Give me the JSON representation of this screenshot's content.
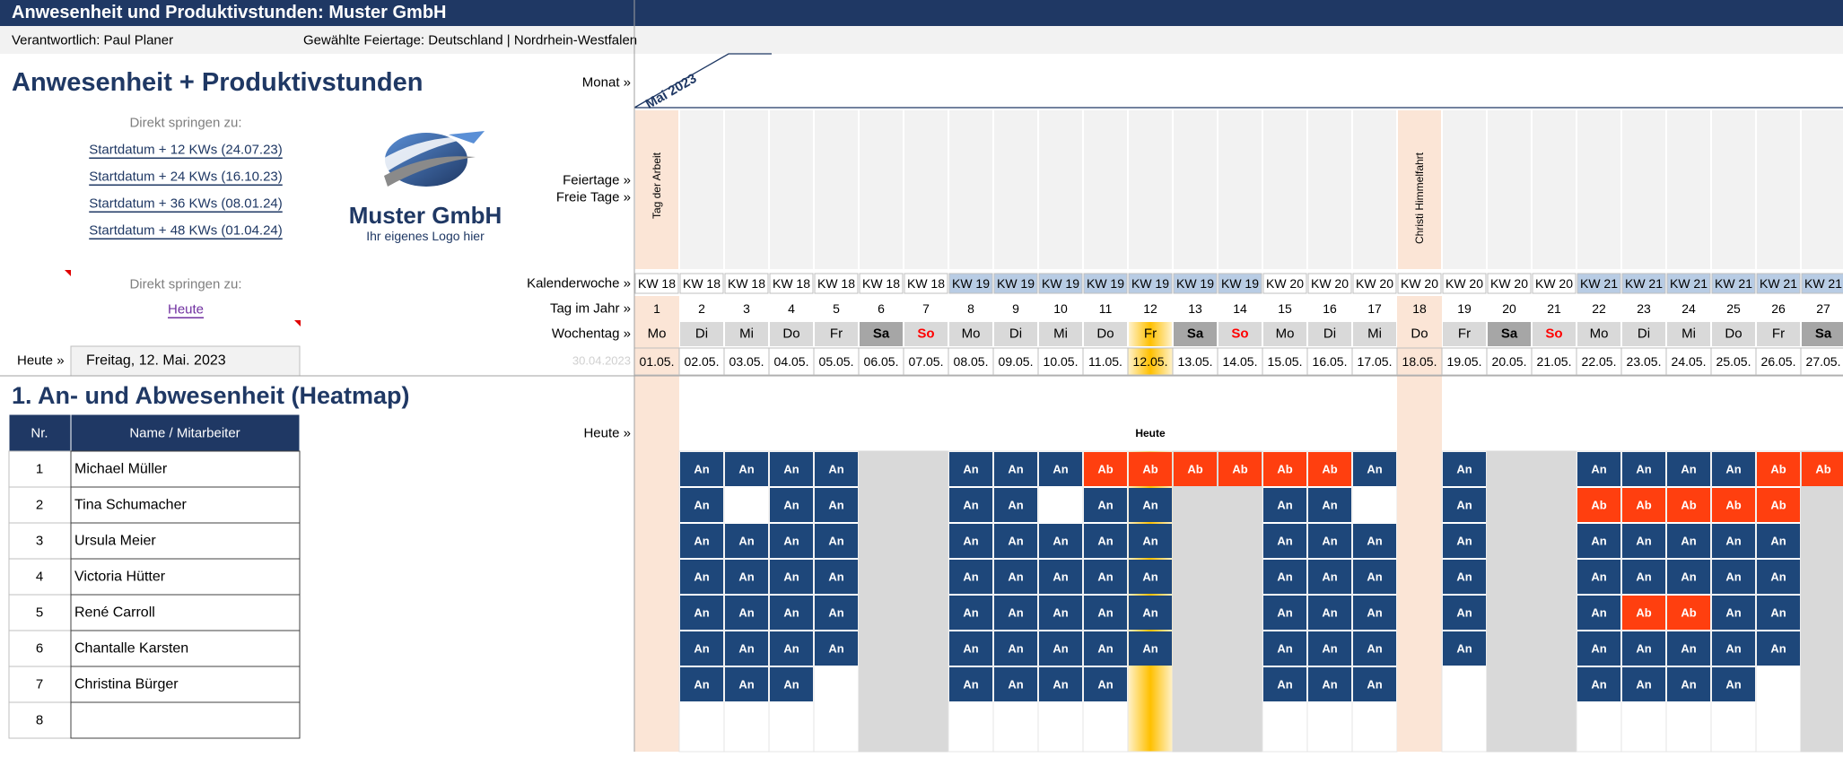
{
  "header": {
    "title": "Anwesenheit und Produktivstunden: Muster GmbH"
  },
  "meta": {
    "responsible": "Verantwortlich: Paul Planer",
    "holidays": "Gewählte Feiertage: Deutschland | Nordrhein-Westfalen"
  },
  "panel": {
    "title": "Anwesenheit + Produktivstunden",
    "jump_label": "Direkt springen zu:",
    "links": [
      "Startdatum + 12 KWs (24.07.23)",
      "Startdatum + 24 KWs (16.10.23)",
      "Startdatum + 36 KWs (08.01.24)",
      "Startdatum + 48 KWs (01.04.24)"
    ],
    "jump_label_2": "Direkt springen zu:",
    "today_link": "Heute",
    "today_label": "Heute »",
    "today_value": "Freitag, 12. Mai. 2023"
  },
  "logo": {
    "name": "Muster GmbH",
    "tagline": "Ihr eigenes Logo hier"
  },
  "timeline": {
    "labels": {
      "month": "Monat »",
      "holidays": "Feiertage »",
      "free_days": "Freie Tage »",
      "week": "Kalenderwoche »",
      "day_of_year": "Tag im Jahr »",
      "weekday": "Wochentag »",
      "today": "Heute »"
    },
    "month": "Mai 2023",
    "previous_date": "30.04.2023",
    "today_marker": "Heute",
    "today_day": 12,
    "days": [
      {
        "kw": "KW 18",
        "day": 1,
        "weekday": "Mo",
        "date": "01.05.",
        "holiday": "Tag der Arbeit"
      },
      {
        "kw": "KW 18",
        "day": 2,
        "weekday": "Di",
        "date": "02.05."
      },
      {
        "kw": "KW 18",
        "day": 3,
        "weekday": "Mi",
        "date": "03.05."
      },
      {
        "kw": "KW 18",
        "day": 4,
        "weekday": "Do",
        "date": "04.05."
      },
      {
        "kw": "KW 18",
        "day": 5,
        "weekday": "Fr",
        "date": "05.05."
      },
      {
        "kw": "KW 18",
        "day": 6,
        "weekday": "Sa",
        "date": "06.05."
      },
      {
        "kw": "KW 18",
        "day": 7,
        "weekday": "So",
        "date": "07.05."
      },
      {
        "kw": "KW 19",
        "day": 8,
        "weekday": "Mo",
        "date": "08.05."
      },
      {
        "kw": "KW 19",
        "day": 9,
        "weekday": "Di",
        "date": "09.05."
      },
      {
        "kw": "KW 19",
        "day": 10,
        "weekday": "Mi",
        "date": "10.05."
      },
      {
        "kw": "KW 19",
        "day": 11,
        "weekday": "Do",
        "date": "11.05."
      },
      {
        "kw": "KW 19",
        "day": 12,
        "weekday": "Fr",
        "date": "12.05."
      },
      {
        "kw": "KW 19",
        "day": 13,
        "weekday": "Sa",
        "date": "13.05."
      },
      {
        "kw": "KW 19",
        "day": 14,
        "weekday": "So",
        "date": "14.05."
      },
      {
        "kw": "KW 20",
        "day": 15,
        "weekday": "Mo",
        "date": "15.05."
      },
      {
        "kw": "KW 20",
        "day": 16,
        "weekday": "Di",
        "date": "16.05."
      },
      {
        "kw": "KW 20",
        "day": 17,
        "weekday": "Mi",
        "date": "17.05."
      },
      {
        "kw": "KW 20",
        "day": 18,
        "weekday": "Do",
        "date": "18.05.",
        "holiday": "Christi Himmelfahrt"
      },
      {
        "kw": "KW 20",
        "day": 19,
        "weekday": "Fr",
        "date": "19.05."
      },
      {
        "kw": "KW 20",
        "day": 20,
        "weekday": "Sa",
        "date": "20.05."
      },
      {
        "kw": "KW 20",
        "day": 21,
        "weekday": "So",
        "date": "21.05."
      },
      {
        "kw": "KW 21",
        "day": 22,
        "weekday": "Mo",
        "date": "22.05."
      },
      {
        "kw": "KW 21",
        "day": 23,
        "weekday": "Di",
        "date": "23.05."
      },
      {
        "kw": "KW 21",
        "day": 24,
        "weekday": "Mi",
        "date": "24.05."
      },
      {
        "kw": "KW 21",
        "day": 25,
        "weekday": "Do",
        "date": "25.05."
      },
      {
        "kw": "KW 21",
        "day": 26,
        "weekday": "Fr",
        "date": "26.05."
      },
      {
        "kw": "KW 21",
        "day": 27,
        "weekday": "Sa",
        "date": "27.05."
      }
    ]
  },
  "section": {
    "title": "1. An- und Abwesenheit (Heatmap)"
  },
  "table": {
    "headers": [
      "Nr.",
      "Name / Mitarbeiter"
    ],
    "rows": [
      {
        "nr": 1,
        "name": "Michael Müller",
        "status": [
          null,
          "An",
          "An",
          "An",
          "An",
          null,
          null,
          "An",
          "An",
          "An",
          "Ab",
          "Ab",
          "Ab",
          "Ab",
          "Ab",
          "Ab",
          "An",
          null,
          "An",
          null,
          null,
          "An",
          "An",
          "An",
          "An",
          "Ab",
          "Ab"
        ]
      },
      {
        "nr": 2,
        "name": "Tina Schumacher",
        "status": [
          null,
          "An",
          null,
          "An",
          "An",
          null,
          null,
          "An",
          "An",
          null,
          "An",
          "An",
          null,
          null,
          "An",
          "An",
          null,
          null,
          "An",
          null,
          null,
          "Ab",
          "Ab",
          "Ab",
          "Ab",
          "Ab",
          null
        ]
      },
      {
        "nr": 3,
        "name": "Ursula Meier",
        "status": [
          null,
          "An",
          "An",
          "An",
          "An",
          null,
          null,
          "An",
          "An",
          "An",
          "An",
          "An",
          null,
          null,
          "An",
          "An",
          "An",
          null,
          "An",
          null,
          null,
          "An",
          "An",
          "An",
          "An",
          "An",
          null
        ]
      },
      {
        "nr": 4,
        "name": "Victoria Hütter",
        "status": [
          null,
          "An",
          "An",
          "An",
          "An",
          null,
          null,
          "An",
          "An",
          "An",
          "An",
          "An",
          null,
          null,
          "An",
          "An",
          "An",
          null,
          "An",
          null,
          null,
          "An",
          "An",
          "An",
          "An",
          "An",
          null
        ]
      },
      {
        "nr": 5,
        "name": "René Carroll",
        "status": [
          null,
          "An",
          "An",
          "An",
          "An",
          null,
          null,
          "An",
          "An",
          "An",
          "An",
          "An",
          null,
          null,
          "An",
          "An",
          "An",
          null,
          "An",
          null,
          null,
          "An",
          "Ab",
          "Ab",
          "An",
          "An",
          null
        ]
      },
      {
        "nr": 6,
        "name": "Chantalle Karsten",
        "status": [
          null,
          "An",
          "An",
          "An",
          "An",
          null,
          null,
          "An",
          "An",
          "An",
          "An",
          "An",
          null,
          null,
          "An",
          "An",
          "An",
          null,
          "An",
          null,
          null,
          "An",
          "An",
          "An",
          "An",
          "An",
          null
        ]
      },
      {
        "nr": 7,
        "name": "Christina Bürger",
        "status": [
          null,
          "An",
          "An",
          "An",
          null,
          null,
          null,
          "An",
          "An",
          "An",
          "An",
          null,
          null,
          null,
          "An",
          "An",
          "An",
          null,
          null,
          null,
          null,
          "An",
          "An",
          "An",
          "An",
          null,
          null
        ]
      },
      {
        "nr": 8,
        "name": null,
        "status": [
          null,
          null,
          null,
          null,
          null,
          null,
          null,
          null,
          null,
          null,
          null,
          null,
          null,
          null,
          null,
          null,
          null,
          null,
          null,
          null,
          null,
          null,
          null,
          null,
          null,
          null,
          null
        ]
      }
    ]
  }
}
